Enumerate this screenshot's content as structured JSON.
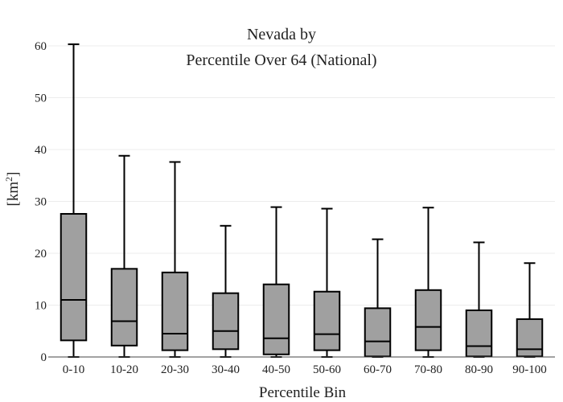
{
  "chart_data": {
    "type": "box",
    "title_lines": [
      "Nevada  by",
      "Percentile Over 64 (National)"
    ],
    "xlabel": "Percentile Bin",
    "ylabel": "[km²]",
    "ylabel_base": "[km",
    "ylabel_sup": "2",
    "ylabel_close": "]",
    "ylim": [
      0,
      60
    ],
    "yticks": [
      0,
      10,
      20,
      30,
      40,
      50,
      60
    ],
    "grid": true,
    "box_color": "#a0a0a0",
    "line_color": "#000000",
    "categories": [
      "0-10",
      "10-20",
      "20-30",
      "30-40",
      "40-50",
      "50-60",
      "60-70",
      "70-80",
      "80-90",
      "90-100"
    ],
    "boxes": [
      {
        "whisker_low": 0,
        "q1": 3.2,
        "median": 11.0,
        "q3": 27.6,
        "whisker_high": 60.3
      },
      {
        "whisker_low": 0,
        "q1": 2.2,
        "median": 6.9,
        "q3": 17.0,
        "whisker_high": 38.8
      },
      {
        "whisker_low": 0,
        "q1": 1.3,
        "median": 4.5,
        "q3": 16.3,
        "whisker_high": 37.6
      },
      {
        "whisker_low": 0,
        "q1": 1.5,
        "median": 5.0,
        "q3": 12.3,
        "whisker_high": 25.3
      },
      {
        "whisker_low": 0,
        "q1": 0.5,
        "median": 3.6,
        "q3": 14.0,
        "whisker_high": 28.9
      },
      {
        "whisker_low": 0,
        "q1": 1.3,
        "median": 4.4,
        "q3": 12.6,
        "whisker_high": 28.6
      },
      {
        "whisker_low": 0,
        "q1": 0.1,
        "median": 3.0,
        "q3": 9.4,
        "whisker_high": 22.7
      },
      {
        "whisker_low": 0,
        "q1": 1.3,
        "median": 5.8,
        "q3": 12.9,
        "whisker_high": 28.8
      },
      {
        "whisker_low": 0,
        "q1": 0.1,
        "median": 2.1,
        "q3": 9.0,
        "whisker_high": 22.1
      },
      {
        "whisker_low": 0,
        "q1": 0.1,
        "median": 1.5,
        "q3": 7.3,
        "whisker_high": 18.1
      }
    ]
  }
}
